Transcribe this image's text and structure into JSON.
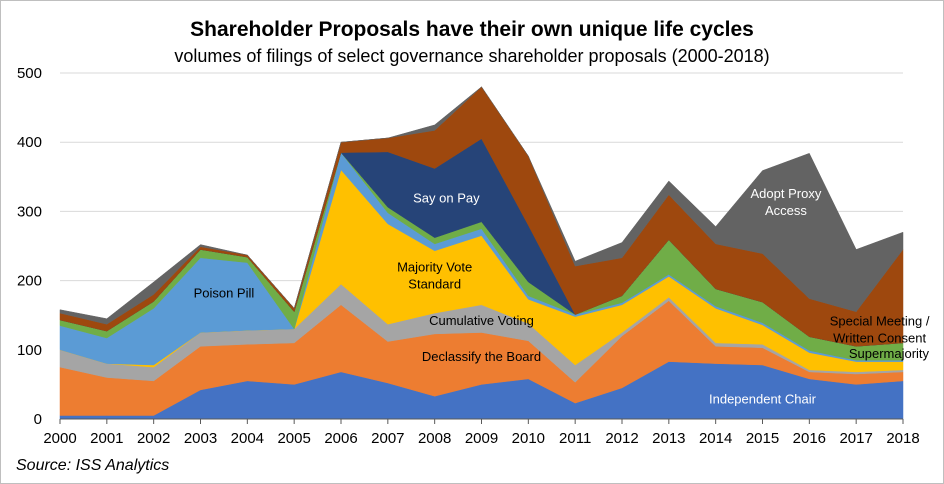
{
  "chart_data": {
    "type": "area",
    "stacked": true,
    "title": "Shareholder Proposals have their own unique life cycles",
    "subtitle": "volumes of filings of select governance shareholder proposals (2000-2018)",
    "source": "Source: ISS Analytics",
    "x": [
      "2000",
      "2001",
      "2002",
      "2003",
      "2004",
      "2005",
      "2006",
      "2007",
      "2008",
      "2009",
      "2010",
      "2011",
      "2012",
      "2013",
      "2014",
      "2015",
      "2016",
      "2017",
      "2018"
    ],
    "y_ticks": [
      "0",
      "100",
      "200",
      "300",
      "400",
      "500"
    ],
    "ylim": [
      0,
      500
    ],
    "series": [
      {
        "name": "Independent Chair",
        "color": "#4472c4",
        "label": "Independent Chair",
        "label_color": "#ffffff",
        "values": [
          5,
          5,
          5,
          42,
          55,
          50,
          68,
          52,
          33,
          50,
          58,
          23,
          45,
          83,
          80,
          78,
          58,
          50,
          55
        ]
      },
      {
        "name": "Declassify the Board",
        "color": "#ed7d31",
        "label": "Declassify the Board",
        "label_color": "#000000",
        "values": [
          70,
          55,
          50,
          63,
          53,
          60,
          97,
          60,
          90,
          75,
          55,
          30,
          75,
          88,
          25,
          25,
          10,
          15,
          13
        ]
      },
      {
        "name": "Cumulative Voting",
        "color": "#a5a5a5",
        "label": "Cumulative Voting",
        "label_color": "#000000",
        "values": [
          25,
          20,
          20,
          20,
          20,
          20,
          30,
          25,
          30,
          40,
          25,
          25,
          5,
          5,
          5,
          5,
          3,
          3,
          3
        ]
      },
      {
        "name": "Majority Vote Standard",
        "color": "#ffc000",
        "label": "Majority Vote\nStandard",
        "label_color": "#000000",
        "values": [
          0,
          0,
          3,
          0,
          0,
          0,
          165,
          145,
          90,
          100,
          35,
          70,
          40,
          30,
          50,
          28,
          25,
          15,
          12
        ]
      },
      {
        "name": "Poison Pill",
        "color": "#5b9bd5",
        "label": "Poison Pill",
        "label_color": "#000000",
        "values": [
          35,
          37,
          82,
          108,
          98,
          0,
          25,
          16,
          10,
          10,
          5,
          3,
          3,
          3,
          3,
          3,
          3,
          2,
          2
        ]
      },
      {
        "name": "Supermajority",
        "color": "#70ad47",
        "label": "Supermajority",
        "label_color": "#000000",
        "values": [
          8,
          10,
          10,
          12,
          8,
          25,
          0,
          8,
          9,
          10,
          20,
          0,
          10,
          50,
          25,
          30,
          20,
          20,
          25
        ]
      },
      {
        "name": "Say on Pay",
        "color": "#264478",
        "label": "Say on Pay",
        "label_color": "#ffffff",
        "values": [
          0,
          0,
          0,
          0,
          0,
          0,
          0,
          80,
          100,
          120,
          82,
          0,
          0,
          0,
          0,
          0,
          0,
          0,
          0
        ]
      },
      {
        "name": "Special Meeting / Written Consent",
        "color": "#9e480e",
        "label": "Special Meeting /\nWritten Consent",
        "label_color": "#000000",
        "values": [
          10,
          10,
          10,
          4,
          3,
          5,
          15,
          20,
          55,
          75,
          100,
          70,
          55,
          65,
          65,
          70,
          55,
          50,
          135
        ]
      },
      {
        "name": "Adopt Proxy Access",
        "color": "#636363",
        "label": "Adopt Proxy\nAccess",
        "label_color": "#ffffff",
        "values": [
          5,
          8,
          18,
          3,
          0,
          0,
          0,
          0,
          8,
          0,
          0,
          7,
          22,
          20,
          25,
          120,
          210,
          90,
          25
        ]
      }
    ],
    "xlabel": "",
    "ylabel": ""
  }
}
